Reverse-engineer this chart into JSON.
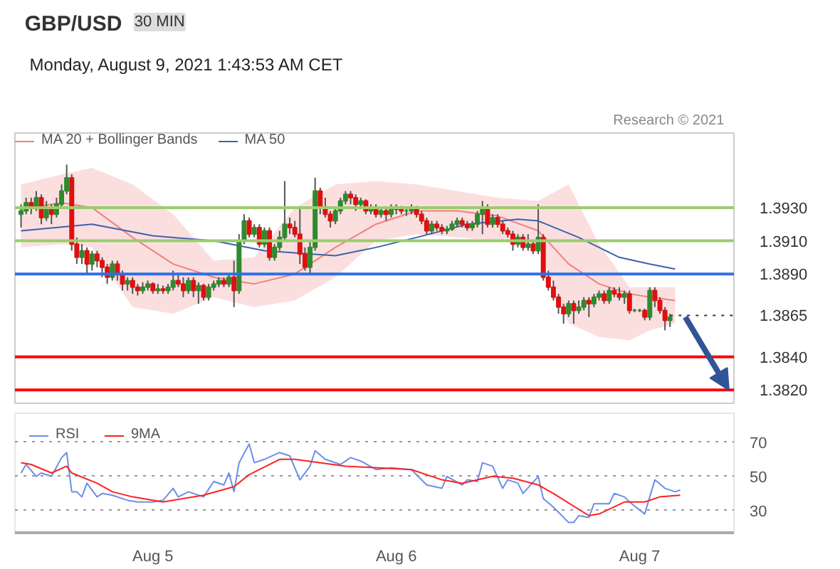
{
  "chart_data": [
    {
      "type": "candlestick",
      "title": "GBP/USD",
      "subtitle": "Monday, August 9, 2021 1:43:53 AM CET",
      "annotations": [
        "30 MIN",
        "Research © 2021"
      ],
      "x": [
        "2021-08-04T11:00",
        "2021-08-04T11:30",
        "2021-08-04T12:00",
        "2021-08-04T12:30",
        "2021-08-04T13:00",
        "2021-08-04T13:30",
        "2021-08-04T14:00",
        "2021-08-04T14:30",
        "2021-08-04T15:00",
        "2021-08-04T15:30",
        "2021-08-04T16:00",
        "2021-08-04T16:30",
        "2021-08-04T17:00",
        "2021-08-04T17:30",
        "2021-08-04T18:00",
        "2021-08-04T18:30",
        "2021-08-04T19:00",
        "2021-08-04T19:30",
        "2021-08-04T20:00",
        "2021-08-04T20:30",
        "2021-08-04T21:00",
        "2021-08-04T21:30",
        "2021-08-04T22:00",
        "2021-08-04T22:30",
        "2021-08-04T23:00",
        "2021-08-04T23:30",
        "2021-08-05T00:00",
        "2021-08-05T00:30",
        "2021-08-05T01:00",
        "2021-08-05T01:30",
        "2021-08-05T02:00",
        "2021-08-05T02:30",
        "2021-08-05T03:00",
        "2021-08-05T03:30",
        "2021-08-05T04:00",
        "2021-08-05T04:30",
        "2021-08-05T05:00",
        "2021-08-05T05:30",
        "2021-08-05T06:00",
        "2021-08-05T06:30",
        "2021-08-05T07:00",
        "2021-08-05T07:30",
        "2021-08-05T08:00",
        "2021-08-05T08:30",
        "2021-08-05T09:00",
        "2021-08-05T09:30",
        "2021-08-05T10:00",
        "2021-08-05T10:30",
        "2021-08-05T11:00",
        "2021-08-05T11:30",
        "2021-08-05T12:00",
        "2021-08-05T12:30",
        "2021-08-05T13:00",
        "2021-08-05T13:30",
        "2021-08-05T14:00",
        "2021-08-05T14:30",
        "2021-08-05T15:00",
        "2021-08-05T15:30",
        "2021-08-05T16:00",
        "2021-08-05T16:30",
        "2021-08-05T17:00",
        "2021-08-05T17:30",
        "2021-08-05T18:00",
        "2021-08-05T18:30",
        "2021-08-05T19:00",
        "2021-08-05T19:30",
        "2021-08-05T20:00",
        "2021-08-05T20:30",
        "2021-08-05T21:00",
        "2021-08-05T21:30",
        "2021-08-05T22:00",
        "2021-08-05T22:30",
        "2021-08-05T23:00",
        "2021-08-05T23:30",
        "2021-08-06T00:00",
        "2021-08-06T00:30",
        "2021-08-06T01:00",
        "2021-08-06T01:30",
        "2021-08-06T02:00",
        "2021-08-06T02:30",
        "2021-08-06T03:00",
        "2021-08-06T03:30",
        "2021-08-06T04:00",
        "2021-08-06T04:30",
        "2021-08-06T05:00",
        "2021-08-06T05:30",
        "2021-08-06T06:00",
        "2021-08-06T06:30",
        "2021-08-06T07:00",
        "2021-08-06T07:30",
        "2021-08-06T08:00",
        "2021-08-06T08:30",
        "2021-08-06T09:00",
        "2021-08-06T09:30",
        "2021-08-06T10:00",
        "2021-08-06T10:30",
        "2021-08-06T11:00",
        "2021-08-06T11:30",
        "2021-08-06T12:00",
        "2021-08-06T12:30",
        "2021-08-06T13:00",
        "2021-08-06T13:30",
        "2021-08-06T14:00",
        "2021-08-06T14:30",
        "2021-08-06T15:00",
        "2021-08-06T15:30",
        "2021-08-06T16:00",
        "2021-08-06T16:30",
        "2021-08-06T17:00",
        "2021-08-06T17:30",
        "2021-08-06T18:00",
        "2021-08-06T18:30",
        "2021-08-06T19:00",
        "2021-08-06T19:30",
        "2021-08-06T20:00",
        "2021-08-06T20:30",
        "2021-08-06T21:00",
        "2021-08-06T21:30",
        "2021-08-06T22:00",
        "2021-08-06T22:30",
        "2021-08-06T23:00",
        "2021-08-06T23:30",
        "2021-08-07T00:00",
        "2021-08-07T00:30",
        "2021-08-07T01:00",
        "2021-08-07T01:30",
        "2021-08-07T02:00",
        "2021-08-07T02:30",
        "2021-08-07T03:00"
      ],
      "ohlc": [
        [
          1.3926,
          1.3932,
          1.3918,
          1.3928
        ],
        [
          1.3928,
          1.3936,
          1.3926,
          1.3933
        ],
        [
          1.3933,
          1.3936,
          1.3926,
          1.393
        ],
        [
          1.393,
          1.394,
          1.3928,
          1.3936
        ],
        [
          1.3936,
          1.3938,
          1.392,
          1.3924
        ],
        [
          1.3924,
          1.3934,
          1.3922,
          1.393
        ],
        [
          1.393,
          1.3932,
          1.392,
          1.3926
        ],
        [
          1.3926,
          1.3936,
          1.3924,
          1.3932
        ],
        [
          1.3932,
          1.3944,
          1.393,
          1.394
        ],
        [
          1.394,
          1.3956,
          1.3938,
          1.3948
        ],
        [
          1.3948,
          1.395,
          1.3904,
          1.3908
        ],
        [
          1.3908,
          1.3912,
          1.3896,
          1.39
        ],
        [
          1.39,
          1.3908,
          1.3896,
          1.3904
        ],
        [
          1.3904,
          1.3906,
          1.389,
          1.3896
        ],
        [
          1.3896,
          1.3904,
          1.3892,
          1.3902
        ],
        [
          1.3902,
          1.3904,
          1.3894,
          1.3898
        ],
        [
          1.3898,
          1.39,
          1.3888,
          1.3894
        ],
        [
          1.3894,
          1.3896,
          1.3884,
          1.3888
        ],
        [
          1.3888,
          1.3898,
          1.3886,
          1.3896
        ],
        [
          1.3896,
          1.3898,
          1.3886,
          1.389
        ],
        [
          1.389,
          1.3892,
          1.388,
          1.3884
        ],
        [
          1.3884,
          1.3888,
          1.388,
          1.3886
        ],
        [
          1.3886,
          1.3888,
          1.3878,
          1.3882
        ],
        [
          1.3882,
          1.3884,
          1.3877,
          1.388
        ],
        [
          1.388,
          1.3885,
          1.3878,
          1.3882
        ],
        [
          1.3882,
          1.3886,
          1.388,
          1.3884
        ],
        [
          1.3884,
          1.3885,
          1.3878,
          1.388
        ],
        [
          1.388,
          1.3884,
          1.3878,
          1.3881
        ],
        [
          1.3881,
          1.3883,
          1.3878,
          1.388
        ],
        [
          1.388,
          1.3884,
          1.3878,
          1.3882
        ],
        [
          1.3882,
          1.3892,
          1.388,
          1.3886
        ],
        [
          1.3886,
          1.389,
          1.3882,
          1.3884
        ],
        [
          1.3884,
          1.3888,
          1.3876,
          1.388
        ],
        [
          1.388,
          1.3888,
          1.3878,
          1.3886
        ],
        [
          1.3886,
          1.3888,
          1.3876,
          1.388
        ],
        [
          1.388,
          1.3885,
          1.3872,
          1.3883
        ],
        [
          1.3883,
          1.3884,
          1.3874,
          1.3876
        ],
        [
          1.3876,
          1.3884,
          1.3874,
          1.3882
        ],
        [
          1.3882,
          1.3886,
          1.388,
          1.3884
        ],
        [
          1.3884,
          1.3888,
          1.3882,
          1.3886
        ],
        [
          1.3886,
          1.3888,
          1.3882,
          1.3884
        ],
        [
          1.3884,
          1.389,
          1.3882,
          1.3888
        ],
        [
          1.3888,
          1.3898,
          1.387,
          1.388
        ],
        [
          1.388,
          1.3914,
          1.3878,
          1.391
        ],
        [
          1.391,
          1.3926,
          1.3908,
          1.3922
        ],
        [
          1.3922,
          1.3924,
          1.3912,
          1.3914
        ],
        [
          1.3914,
          1.392,
          1.3912,
          1.3918
        ],
        [
          1.3918,
          1.392,
          1.3906,
          1.3908
        ],
        [
          1.3908,
          1.3918,
          1.3906,
          1.3916
        ],
        [
          1.3916,
          1.3918,
          1.3898,
          1.39
        ],
        [
          1.39,
          1.3908,
          1.3898,
          1.3906
        ],
        [
          1.3906,
          1.3916,
          1.3904,
          1.3912
        ],
        [
          1.3912,
          1.3946,
          1.391,
          1.392
        ],
        [
          1.392,
          1.3924,
          1.3914,
          1.3918
        ],
        [
          1.3918,
          1.3922,
          1.3912,
          1.3914
        ],
        [
          1.3914,
          1.393,
          1.3896,
          1.3902
        ],
        [
          1.3902,
          1.3906,
          1.3892,
          1.3894
        ],
        [
          1.3894,
          1.391,
          1.389,
          1.3906
        ],
        [
          1.3906,
          1.3948,
          1.3904,
          1.394
        ],
        [
          1.394,
          1.3942,
          1.3926,
          1.393
        ],
        [
          1.393,
          1.3936,
          1.3924,
          1.3926
        ],
        [
          1.3926,
          1.3928,
          1.3918,
          1.3922
        ],
        [
          1.3922,
          1.393,
          1.392,
          1.3928
        ],
        [
          1.3928,
          1.3936,
          1.3926,
          1.3934
        ],
        [
          1.3934,
          1.394,
          1.3932,
          1.3938
        ],
        [
          1.3938,
          1.394,
          1.3932,
          1.3936
        ],
        [
          1.3936,
          1.3938,
          1.3928,
          1.3932
        ],
        [
          1.3932,
          1.3936,
          1.393,
          1.3934
        ],
        [
          1.3934,
          1.3935,
          1.3926,
          1.3928
        ],
        [
          1.3928,
          1.3932,
          1.3926,
          1.393
        ],
        [
          1.393,
          1.3932,
          1.3924,
          1.3926
        ],
        [
          1.3926,
          1.393,
          1.3924,
          1.3928
        ],
        [
          1.3928,
          1.393,
          1.3922,
          1.3926
        ],
        [
          1.3926,
          1.3932,
          1.3924,
          1.393
        ],
        [
          1.393,
          1.3932,
          1.3926,
          1.3929
        ],
        [
          1.3929,
          1.3931,
          1.3926,
          1.3928
        ],
        [
          1.3928,
          1.393,
          1.3925,
          1.3928
        ],
        [
          1.3928,
          1.3932,
          1.3926,
          1.393
        ],
        [
          1.393,
          1.3931,
          1.3924,
          1.3926
        ],
        [
          1.3926,
          1.3928,
          1.392,
          1.3922
        ],
        [
          1.3922,
          1.3924,
          1.3914,
          1.3916
        ],
        [
          1.3916,
          1.3922,
          1.3914,
          1.392
        ],
        [
          1.392,
          1.3922,
          1.3916,
          1.3918
        ],
        [
          1.3918,
          1.392,
          1.3914,
          1.3916
        ],
        [
          1.3916,
          1.3919,
          1.3914,
          1.3917
        ],
        [
          1.3917,
          1.3922,
          1.3916,
          1.392
        ],
        [
          1.392,
          1.3924,
          1.3918,
          1.3922
        ],
        [
          1.3922,
          1.3924,
          1.3918,
          1.392
        ],
        [
          1.392,
          1.3922,
          1.3916,
          1.3918
        ],
        [
          1.3918,
          1.3922,
          1.3916,
          1.392
        ],
        [
          1.392,
          1.3928,
          1.3918,
          1.3926
        ],
        [
          1.3926,
          1.3934,
          1.3914,
          1.393
        ],
        [
          1.393,
          1.3932,
          1.3918,
          1.392
        ],
        [
          1.392,
          1.3926,
          1.3918,
          1.3924
        ],
        [
          1.3924,
          1.3926,
          1.3918,
          1.392
        ],
        [
          1.392,
          1.3922,
          1.3914,
          1.3916
        ],
        [
          1.3916,
          1.3918,
          1.3912,
          1.3914
        ],
        [
          1.3914,
          1.3916,
          1.3904,
          1.3908
        ],
        [
          1.3908,
          1.3914,
          1.3906,
          1.3912
        ],
        [
          1.3912,
          1.3914,
          1.3904,
          1.3906
        ],
        [
          1.3906,
          1.3914,
          1.3904,
          1.3908
        ],
        [
          1.3908,
          1.391,
          1.3902,
          1.3904
        ],
        [
          1.3904,
          1.3932,
          1.3902,
          1.3912
        ],
        [
          1.3912,
          1.3914,
          1.3886,
          1.3888
        ],
        [
          1.3888,
          1.3892,
          1.388,
          1.3882
        ],
        [
          1.3882,
          1.3886,
          1.3874,
          1.3876
        ],
        [
          1.3876,
          1.3878,
          1.3866,
          1.387
        ],
        [
          1.387,
          1.3872,
          1.386,
          1.3866
        ],
        [
          1.3866,
          1.3874,
          1.3864,
          1.3872
        ],
        [
          1.3872,
          1.3874,
          1.386,
          1.3868
        ],
        [
          1.3868,
          1.3874,
          1.3866,
          1.387
        ],
        [
          1.387,
          1.3876,
          1.3868,
          1.3874
        ],
        [
          1.3874,
          1.3876,
          1.3864,
          1.3872
        ],
        [
          1.3872,
          1.3878,
          1.387,
          1.3876
        ],
        [
          1.3876,
          1.388,
          1.3874,
          1.3878
        ],
        [
          1.3878,
          1.388,
          1.3872,
          1.3874
        ],
        [
          1.3874,
          1.3882,
          1.3872,
          1.388
        ],
        [
          1.388,
          1.3882,
          1.3876,
          1.3878
        ],
        [
          1.3878,
          1.3882,
          1.3874,
          1.3876
        ],
        [
          1.3876,
          1.388,
          1.3872,
          1.3878
        ],
        [
          1.3878,
          1.388,
          1.3866,
          1.3868
        ],
        [
          1.3868,
          1.3869,
          1.3867,
          1.3868
        ],
        [
          1.3868,
          1.3869,
          1.3867,
          1.3868
        ],
        [
          1.3868,
          1.3869,
          1.3862,
          1.3864
        ],
        [
          1.3864,
          1.3882,
          1.3862,
          1.388
        ],
        [
          1.388,
          1.3882,
          1.387,
          1.3874
        ],
        [
          1.3874,
          1.3876,
          1.3866,
          1.3868
        ],
        [
          1.3868,
          1.387,
          1.3856,
          1.3862
        ],
        [
          1.3862,
          1.3866,
          1.3858,
          1.3864
        ]
      ],
      "series": [
        {
          "name": "MA 20 + Bollinger Bands",
          "type": "line",
          "color": "#f08080",
          "x": [
            "2021-08-04T11:00",
            "2021-08-04T15:00",
            "2021-08-04T18:00",
            "2021-08-04T22:00",
            "2021-08-05T02:00",
            "2021-08-05T06:00",
            "2021-08-05T10:00",
            "2021-08-05T14:00",
            "2021-08-05T18:00",
            "2021-08-05T22:00",
            "2021-08-06T02:00",
            "2021-08-06T06:00",
            "2021-08-06T10:00",
            "2021-08-06T14:00",
            "2021-08-06T17:00",
            "2021-08-06T20:00",
            "2021-08-06T23:00",
            "2021-08-07T01:00",
            "2021-08-07T03:30"
          ],
          "values": [
            1.3929,
            1.3933,
            1.393,
            1.3912,
            1.3896,
            1.3888,
            1.3884,
            1.389,
            1.3906,
            1.392,
            1.3928,
            1.3928,
            1.3925,
            1.3916,
            1.3896,
            1.3884,
            1.3878,
            1.3876,
            1.3874
          ],
          "upper": [
            1.3944,
            1.395,
            1.3954,
            1.3944,
            1.3926,
            1.3898,
            1.39,
            1.393,
            1.3944,
            1.3946,
            1.3944,
            1.394,
            1.3936,
            1.3934,
            1.3944,
            1.3908,
            1.3882,
            1.3882,
            1.3882
          ],
          "lower": [
            1.3906,
            1.3908,
            1.3906,
            1.387,
            1.3866,
            1.3876,
            1.387,
            1.3874,
            1.3888,
            1.391,
            1.3914,
            1.3912,
            1.391,
            1.3906,
            1.386,
            1.3852,
            1.385,
            1.3856,
            1.386
          ]
        },
        {
          "name": "MA 50",
          "type": "line",
          "color": "#3a63a8",
          "x": [
            "2021-08-04T11:00",
            "2021-08-04T18:00",
            "2021-08-05T00:00",
            "2021-08-05T06:00",
            "2021-08-05T11:00",
            "2021-08-05T18:00",
            "2021-08-05T22:00",
            "2021-08-06T02:00",
            "2021-08-06T07:00",
            "2021-08-06T12:00",
            "2021-08-06T14:00",
            "2021-08-06T18:00",
            "2021-08-06T22:00",
            "2021-08-07T01:00",
            "2021-08-07T03:30"
          ],
          "values": [
            1.3916,
            1.392,
            1.3913,
            1.391,
            1.3904,
            1.3901,
            1.3906,
            1.3912,
            1.392,
            1.3923,
            1.3922,
            1.3912,
            1.39,
            1.3896,
            1.3893
          ]
        }
      ],
      "xlim": [
        "2021-08-04T10:24",
        "2021-08-07T09:18"
      ],
      "ylim": [
        1.3812,
        1.3975
      ],
      "tick_labels": "y",
      "grid": false,
      "legend": "top left",
      "yticks": [
        {
          "value": 1.393,
          "label": "1.3930"
        },
        {
          "value": 1.391,
          "label": "1.3910"
        },
        {
          "value": 1.389,
          "label": "1.3890"
        },
        {
          "value": 1.3865,
          "label": "1.3865"
        },
        {
          "value": 1.384,
          "label": "1.3840"
        },
        {
          "value": 1.382,
          "label": "1.3820"
        }
      ],
      "ref_lines": [
        {
          "axis": "y",
          "value": 1.393,
          "color": "#9ccc70"
        },
        {
          "axis": "y",
          "value": 1.391,
          "color": "#9ccc70"
        },
        {
          "axis": "y",
          "value": 1.389,
          "color": "#2f6fe4"
        },
        {
          "axis": "y",
          "value": 1.3865,
          "color": "#333333",
          "line_style": "dotted"
        },
        {
          "axis": "y",
          "value": 1.384,
          "color": "#ff0000"
        },
        {
          "axis": "y",
          "value": 1.382,
          "color": "#ff0000"
        }
      ]
    },
    {
      "type": "line",
      "xlim": [
        "2021-08-04T10:24",
        "2021-08-07T09:18"
      ],
      "ylim": [
        17,
        87
      ],
      "yticks": [
        30,
        50,
        70
      ],
      "grid": "y",
      "legend": "top left",
      "xticks": [
        {
          "value": "2021-08-05",
          "label": "Aug 5"
        },
        {
          "value": "2021-08-06",
          "label": "Aug 6"
        },
        {
          "value": "2021-08-07",
          "label": "Aug 7"
        }
      ],
      "series": [
        {
          "name": "RSI",
          "color": "#6b8ee8",
          "x": [
            "2021-08-04T11:00",
            "2021-08-04T11:30",
            "2021-08-04T12:30",
            "2021-08-04T13:00",
            "2021-08-04T14:00",
            "2021-08-04T15:00",
            "2021-08-04T15:30",
            "2021-08-04T16:00",
            "2021-08-04T16:30",
            "2021-08-04T17:00",
            "2021-08-04T17:30",
            "2021-08-04T18:30",
            "2021-08-04T19:00",
            "2021-08-04T20:00",
            "2021-08-04T21:30",
            "2021-08-04T22:30",
            "2021-08-05T00:00",
            "2021-08-05T01:00",
            "2021-08-05T02:00",
            "2021-08-05T02:30",
            "2021-08-05T03:30",
            "2021-08-05T05:00",
            "2021-08-05T06:00",
            "2021-08-05T07:00",
            "2021-08-05T07:30",
            "2021-08-05T08:00",
            "2021-08-05T08:30",
            "2021-08-05T09:30",
            "2021-08-05T10:00",
            "2021-08-05T11:00",
            "2021-08-05T12:30",
            "2021-08-05T13:30",
            "2021-08-05T14:30",
            "2021-08-05T15:30",
            "2021-08-05T16:00",
            "2021-08-05T17:00",
            "2021-08-05T18:30",
            "2021-08-05T19:30",
            "2021-08-05T20:30",
            "2021-08-05T22:00",
            "2021-08-05T23:30",
            "2021-08-06T01:30",
            "2021-08-06T03:00",
            "2021-08-06T04:30",
            "2021-08-06T05:00",
            "2021-08-06T06:30",
            "2021-08-06T07:00",
            "2021-08-06T08:00",
            "2021-08-06T08:30",
            "2021-08-06T09:30",
            "2021-08-06T10:30",
            "2021-08-06T11:00",
            "2021-08-06T12:00",
            "2021-08-06T12:30",
            "2021-08-06T14:00",
            "2021-08-06T14:30",
            "2021-08-06T15:30",
            "2021-08-06T17:00",
            "2021-08-06T17:30",
            "2021-08-06T18:00",
            "2021-08-06T19:00",
            "2021-08-06T19:30",
            "2021-08-06T21:00",
            "2021-08-06T21:30",
            "2021-08-06T22:30",
            "2021-08-06T23:00",
            "2021-08-07T00:30",
            "2021-08-07T01:30",
            "2021-08-07T02:30",
            "2021-08-07T03:30",
            "2021-08-07T04:00"
          ],
          "values": [
            52,
            57,
            50,
            52,
            50,
            61,
            64,
            41,
            41,
            38,
            46,
            38,
            40,
            39,
            36,
            35,
            35,
            36,
            43,
            38,
            41,
            38,
            47,
            45,
            52,
            41,
            58,
            69,
            58,
            60,
            64,
            62,
            48,
            56,
            65,
            60,
            57,
            61,
            59,
            54,
            55,
            54,
            45,
            43,
            50,
            45,
            48,
            47,
            58,
            56,
            43,
            48,
            46,
            40,
            50,
            37,
            32,
            23,
            23,
            27,
            26,
            34,
            34,
            40,
            38,
            35,
            28,
            48,
            43,
            41,
            42
          ]
        },
        {
          "name": "9MA",
          "color": "#ff2020",
          "x": [
            "2021-08-04T11:00",
            "2021-08-04T12:00",
            "2021-08-04T14:00",
            "2021-08-04T15:30",
            "2021-08-04T16:00",
            "2021-08-04T18:30",
            "2021-08-04T20:00",
            "2021-08-04T22:00",
            "2021-08-05T01:00",
            "2021-08-05T05:00",
            "2021-08-05T08:00",
            "2021-08-05T09:30",
            "2021-08-05T12:30",
            "2021-08-05T14:00",
            "2021-08-05T19:00",
            "2021-08-06T01:30",
            "2021-08-06T04:30",
            "2021-08-06T06:30",
            "2021-08-06T09:30",
            "2021-08-06T11:30",
            "2021-08-06T14:00",
            "2021-08-06T15:30",
            "2021-08-06T19:00",
            "2021-08-06T20:00",
            "2021-08-06T22:30",
            "2021-08-07T00:30",
            "2021-08-07T02:00",
            "2021-08-07T04:00"
          ],
          "values": [
            58,
            57,
            52,
            56,
            52,
            46,
            41,
            38,
            35,
            39,
            44,
            51,
            60,
            60,
            56,
            54,
            48,
            46,
            50,
            49,
            45,
            40,
            27,
            28,
            35,
            35,
            38,
            39
          ]
        }
      ]
    }
  ]
}
